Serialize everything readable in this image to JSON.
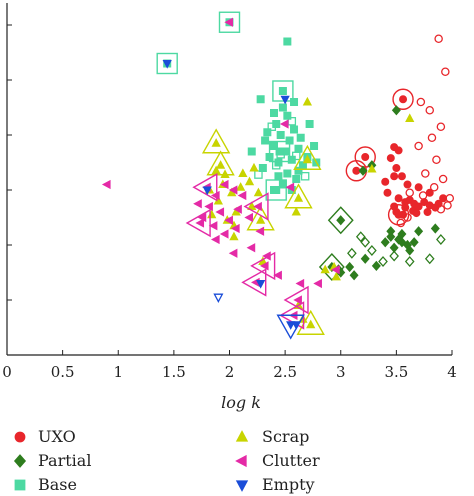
{
  "chart_data": {
    "type": "scatter",
    "title": "",
    "xlabel": "log k",
    "ylabel": "",
    "xlim": [
      0,
      4
    ],
    "ylim": [
      0,
      6.4
    ],
    "x_ticks": [
      "0",
      "0.5",
      "1",
      "1.5",
      "2",
      "2.5",
      "3",
      "3.5",
      "4"
    ],
    "y_ticks_labeled": false,
    "grid": false,
    "legend_position": "bottom",
    "series": [
      {
        "name": "UXO",
        "marker": "circle",
        "color": "#e8262b",
        "filled": [
          [
            3.48,
            3.78
          ],
          [
            3.52,
            3.72
          ],
          [
            3.45,
            3.58
          ],
          [
            3.5,
            3.4
          ],
          [
            3.55,
            3.25
          ],
          [
            3.6,
            3.1
          ],
          [
            3.48,
            3.25
          ],
          [
            3.4,
            3.15
          ],
          [
            3.42,
            2.95
          ],
          [
            3.52,
            2.85
          ],
          [
            3.58,
            2.78
          ],
          [
            3.62,
            2.82
          ],
          [
            3.66,
            2.75
          ],
          [
            3.7,
            2.7
          ],
          [
            3.75,
            2.78
          ],
          [
            3.8,
            2.72
          ],
          [
            3.85,
            2.68
          ],
          [
            3.88,
            2.75
          ],
          [
            3.5,
            2.6
          ],
          [
            3.56,
            2.55
          ],
          [
            3.65,
            2.62
          ],
          [
            3.78,
            2.6
          ],
          [
            3.92,
            2.85
          ],
          [
            3.48,
            2.7
          ],
          [
            3.7,
            3.05
          ],
          [
            3.8,
            2.95
          ],
          [
            3.58,
            2.68
          ],
          [
            3.68,
            2.58
          ]
        ],
        "hollow": [
          [
            3.88,
            5.75
          ],
          [
            3.94,
            5.15
          ],
          [
            3.72,
            4.6
          ],
          [
            3.8,
            4.45
          ],
          [
            3.9,
            4.15
          ],
          [
            3.82,
            3.95
          ],
          [
            3.7,
            3.8
          ],
          [
            3.86,
            3.55
          ],
          [
            3.76,
            3.3
          ],
          [
            3.84,
            3.05
          ],
          [
            3.92,
            3.2
          ],
          [
            3.62,
            2.95
          ],
          [
            3.74,
            2.9
          ],
          [
            3.98,
            2.85
          ],
          [
            3.9,
            2.65
          ],
          [
            3.6,
            2.5
          ],
          [
            3.54,
            2.4
          ],
          [
            3.96,
            2.72
          ]
        ],
        "highlighted": [
          [
            3.22,
            3.6
          ],
          [
            3.14,
            3.35
          ],
          [
            3.56,
            4.65
          ],
          [
            3.52,
            2.55
          ]
        ]
      },
      {
        "name": "Partial",
        "marker": "diamond",
        "color": "#2e7d1e",
        "filled": [
          [
            3.5,
            4.45
          ],
          [
            3.28,
            3.45
          ],
          [
            3.2,
            3.35
          ],
          [
            3.55,
            2.05
          ],
          [
            3.6,
            2.0
          ],
          [
            3.48,
            1.95
          ],
          [
            3.4,
            2.05
          ],
          [
            3.52,
            2.1
          ],
          [
            3.66,
            2.05
          ],
          [
            3.45,
            2.15
          ],
          [
            3.62,
            1.9
          ],
          [
            3.08,
            1.6
          ],
          [
            3.32,
            1.62
          ],
          [
            3.0,
            1.5
          ],
          [
            3.22,
            1.75
          ],
          [
            3.12,
            1.45
          ],
          [
            3.45,
            2.25
          ],
          [
            3.7,
            2.25
          ],
          [
            3.85,
            2.3
          ],
          [
            3.55,
            2.2
          ]
        ],
        "hollow": [
          [
            3.18,
            2.15
          ],
          [
            3.28,
            1.9
          ],
          [
            3.1,
            1.85
          ],
          [
            3.38,
            1.7
          ],
          [
            3.62,
            1.7
          ],
          [
            3.8,
            1.75
          ],
          [
            3.9,
            2.1
          ],
          [
            3.48,
            1.8
          ],
          [
            2.98,
            1.55
          ],
          [
            3.22,
            2.05
          ]
        ],
        "highlighted": [
          [
            3.0,
            2.45
          ],
          [
            2.92,
            1.6
          ]
        ]
      },
      {
        "name": "Base",
        "marker": "square",
        "color": "#4dd9a2",
        "filled": [
          [
            2.48,
            4.5
          ],
          [
            2.52,
            4.35
          ],
          [
            2.42,
            4.2
          ],
          [
            2.58,
            4.1
          ],
          [
            2.46,
            4.0
          ],
          [
            2.54,
            3.9
          ],
          [
            2.4,
            3.8
          ],
          [
            2.62,
            3.75
          ],
          [
            2.5,
            3.7
          ],
          [
            2.36,
            3.6
          ],
          [
            2.56,
            3.55
          ],
          [
            2.44,
            3.5
          ],
          [
            2.66,
            3.45
          ],
          [
            2.3,
            3.4
          ],
          [
            2.52,
            3.3
          ],
          [
            2.6,
            3.2
          ],
          [
            2.48,
            3.1
          ],
          [
            2.7,
            3.6
          ],
          [
            2.34,
            4.05
          ],
          [
            2.4,
            4.4
          ],
          [
            2.58,
            4.6
          ],
          [
            2.64,
            3.95
          ],
          [
            2.76,
            3.8
          ],
          [
            2.78,
            3.5
          ],
          [
            2.2,
            3.7
          ],
          [
            2.44,
            3.25
          ],
          [
            2.56,
            3.0
          ],
          [
            2.72,
            4.2
          ],
          [
            2.28,
            4.65
          ],
          [
            2.52,
            5.7
          ],
          [
            2.4,
            3.0
          ],
          [
            2.62,
            3.35
          ],
          [
            2.32,
            3.9
          ]
        ],
        "hollow": [
          [
            2.38,
            4.15
          ],
          [
            2.46,
            3.65
          ],
          [
            2.56,
            4.25
          ],
          [
            2.26,
            3.28
          ],
          [
            2.68,
            3.25
          ],
          [
            2.42,
            3.45
          ],
          [
            2.6,
            3.62
          ]
        ],
        "highlighted": [
          [
            2.0,
            6.05
          ],
          [
            1.44,
            5.3
          ],
          [
            2.48,
            4.8
          ],
          [
            2.45,
            3.7
          ],
          [
            2.42,
            3.0
          ]
        ]
      },
      {
        "name": "Scrap",
        "marker": "triangle-up",
        "color": "#c8d400",
        "filled": [
          [
            1.82,
            3.0
          ],
          [
            1.94,
            3.1
          ],
          [
            2.02,
            2.95
          ],
          [
            2.1,
            3.05
          ],
          [
            1.9,
            2.8
          ],
          [
            2.18,
            3.15
          ],
          [
            2.06,
            2.6
          ],
          [
            1.98,
            2.45
          ],
          [
            2.2,
            2.7
          ],
          [
            2.26,
            2.95
          ],
          [
            2.04,
            2.35
          ],
          [
            2.12,
            3.3
          ],
          [
            1.88,
            3.35
          ],
          [
            2.6,
            2.6
          ],
          [
            2.94,
            1.6
          ],
          [
            2.96,
            1.42
          ],
          [
            2.86,
            1.55
          ],
          [
            2.3,
            1.7
          ],
          [
            2.66,
            0.65
          ],
          [
            2.62,
            0.9
          ],
          [
            3.62,
            4.3
          ],
          [
            3.28,
            3.38
          ],
          [
            1.96,
            3.28
          ],
          [
            2.22,
            3.4
          ],
          [
            2.04,
            2.15
          ],
          [
            1.84,
            2.55
          ],
          [
            2.7,
            4.6
          ]
        ],
        "hollow": [],
        "highlighted": [
          [
            1.88,
            3.85
          ],
          [
            1.92,
            3.45
          ],
          [
            2.62,
            2.85
          ],
          [
            2.28,
            2.45
          ],
          [
            2.73,
            0.55
          ],
          [
            2.7,
            3.55
          ]
        ]
      },
      {
        "name": "Clutter",
        "marker": "triangle-left",
        "color": "#e42aa6",
        "filled": [
          [
            2.0,
            6.05
          ],
          [
            0.9,
            3.1
          ],
          [
            1.88,
            2.9
          ],
          [
            1.96,
            3.1
          ],
          [
            2.04,
            3.0
          ],
          [
            2.12,
            2.9
          ],
          [
            1.82,
            2.7
          ],
          [
            1.92,
            2.6
          ],
          [
            2.0,
            2.45
          ],
          [
            2.08,
            2.65
          ],
          [
            1.76,
            2.5
          ],
          [
            1.86,
            2.35
          ],
          [
            2.06,
            2.3
          ],
          [
            1.96,
            2.2
          ],
          [
            2.18,
            2.5
          ],
          [
            2.28,
            2.25
          ],
          [
            1.72,
            2.75
          ],
          [
            2.2,
            1.95
          ],
          [
            2.34,
            1.8
          ],
          [
            2.44,
            1.45
          ],
          [
            2.64,
            1.3
          ],
          [
            2.96,
            1.55
          ],
          [
            2.8,
            1.3
          ],
          [
            2.5,
            4.2
          ],
          [
            2.55,
            3.05
          ],
          [
            2.04,
            1.85
          ],
          [
            1.88,
            2.1
          ]
        ],
        "hollow": [],
        "highlighted": [
          [
            1.8,
            3.05
          ],
          [
            1.74,
            2.4
          ],
          [
            2.26,
            2.7
          ],
          [
            2.32,
            1.62
          ],
          [
            2.24,
            1.32
          ],
          [
            2.62,
            1.0
          ],
          [
            2.58,
            0.72
          ]
        ]
      },
      {
        "name": "Empty",
        "marker": "triangle-down",
        "color": "#1a4dd8",
        "filled": [
          [
            1.44,
            5.3
          ],
          [
            1.8,
            3.0
          ],
          [
            2.5,
            4.65
          ],
          [
            2.28,
            1.3
          ],
          [
            2.6,
            0.55
          ]
        ],
        "hollow": [
          [
            1.9,
            1.05
          ]
        ],
        "highlighted": [
          [
            2.55,
            0.55
          ]
        ]
      }
    ]
  },
  "legend": {
    "items": [
      {
        "label": "UXO",
        "marker": "circle",
        "color": "#e8262b"
      },
      {
        "label": "Partial",
        "marker": "diamond",
        "color": "#2e7d1e"
      },
      {
        "label": "Base",
        "marker": "square",
        "color": "#4dd9a2"
      },
      {
        "label": "Scrap",
        "marker": "triangle-up",
        "color": "#c8d400"
      },
      {
        "label": "Clutter",
        "marker": "triangle-left",
        "color": "#e42aa6"
      },
      {
        "label": "Empty",
        "marker": "triangle-down",
        "color": "#1a4dd8"
      }
    ]
  }
}
